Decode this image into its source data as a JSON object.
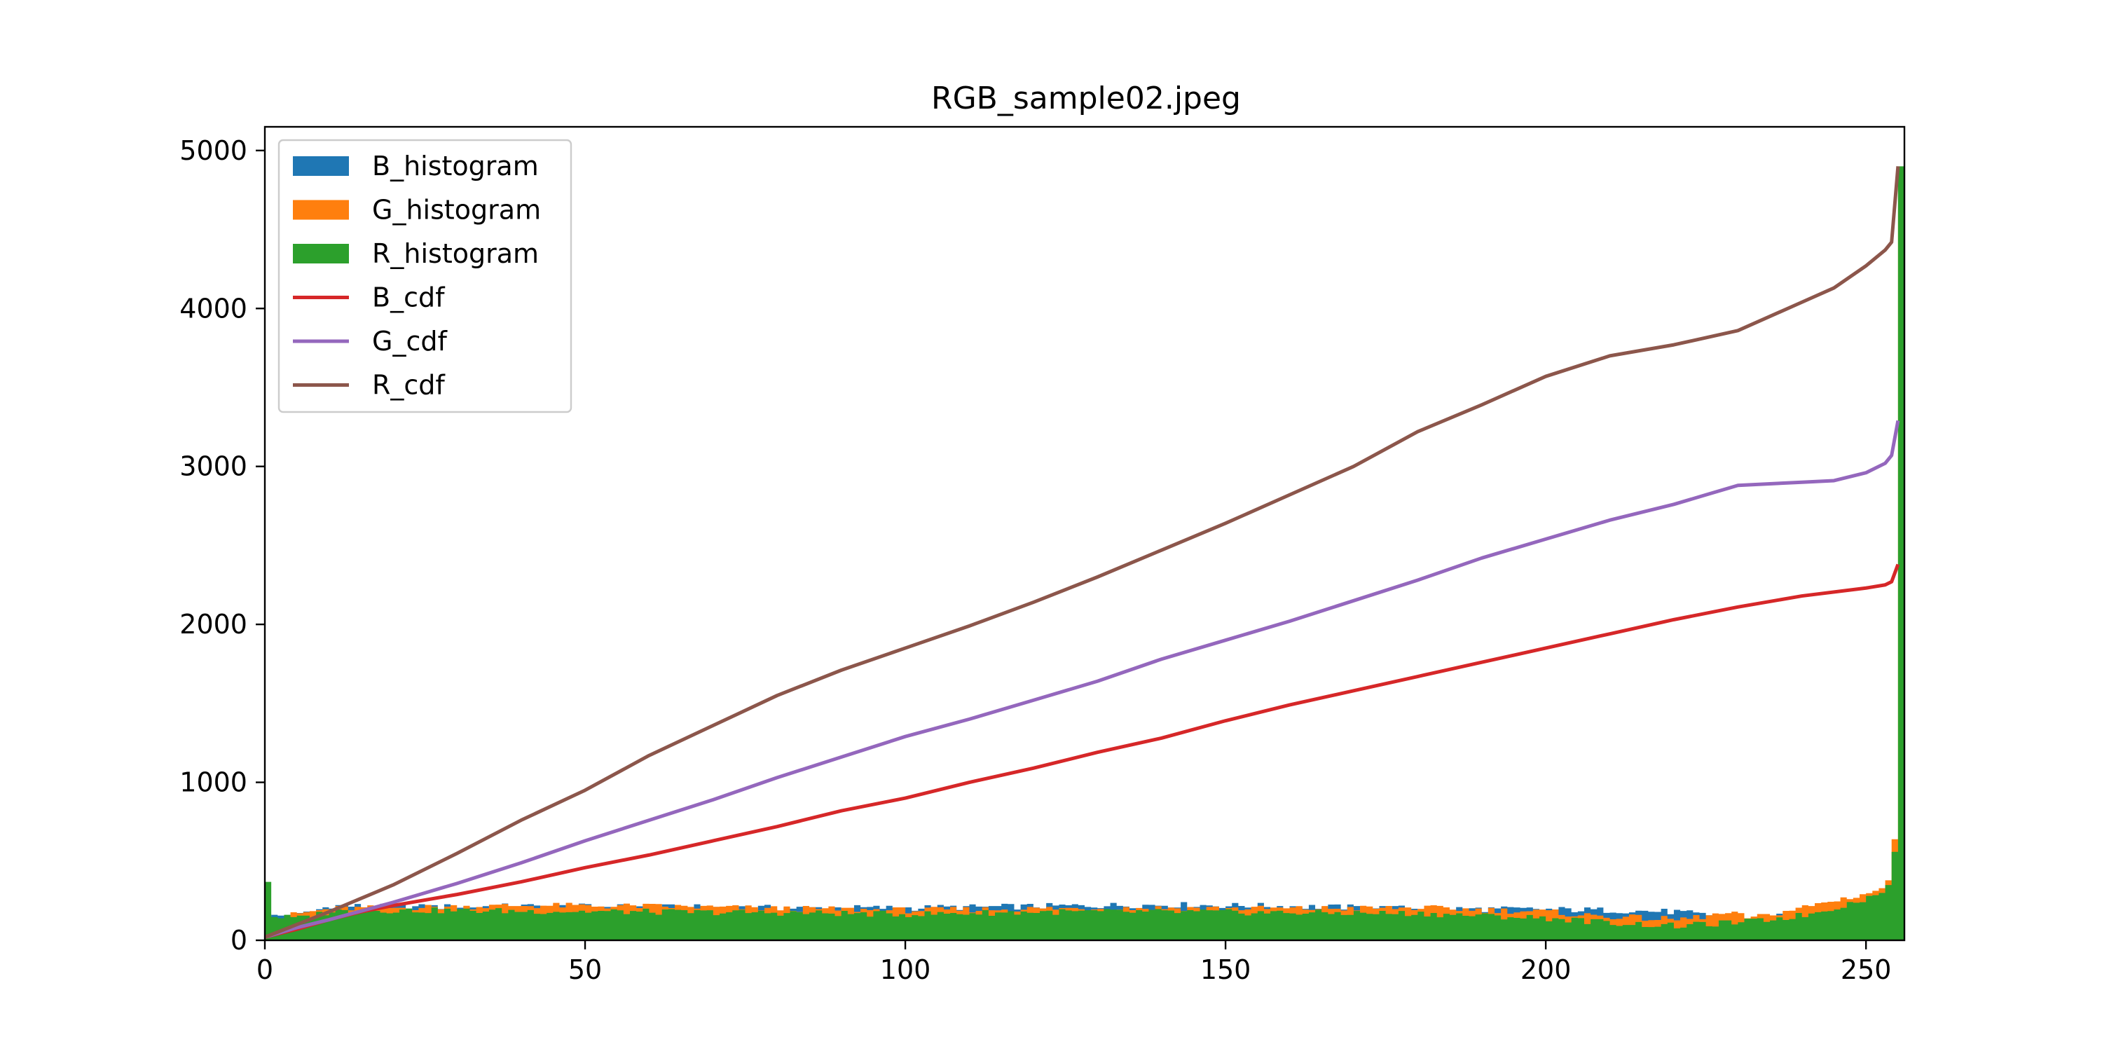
{
  "chart_data": {
    "type": "histogram+line",
    "title": "RGB_sample02.jpeg",
    "xlabel": "",
    "ylabel": "",
    "xlim": [
      0,
      256
    ],
    "ylim": [
      0,
      5150
    ],
    "xticks": [
      0,
      50,
      100,
      150,
      200,
      250
    ],
    "yticks": [
      0,
      1000,
      2000,
      3000,
      4000,
      5000
    ],
    "grid": false,
    "legend_position": "top-left",
    "bins": "0..255 (256 bins, width 1)",
    "series": [
      {
        "name": "B_histogram",
        "kind": "histogram",
        "color": "#1f77b4",
        "profile": [
          [
            0,
            150
          ],
          [
            5,
            160
          ],
          [
            10,
            220
          ],
          [
            20,
            210
          ],
          [
            40,
            215
          ],
          [
            60,
            210
          ],
          [
            80,
            205
          ],
          [
            100,
            205
          ],
          [
            120,
            215
          ],
          [
            140,
            225
          ],
          [
            160,
            215
          ],
          [
            180,
            200
          ],
          [
            200,
            195
          ],
          [
            210,
            190
          ],
          [
            220,
            180
          ],
          [
            230,
            130
          ],
          [
            235,
            150
          ],
          [
            245,
            230
          ],
          [
            250,
            280
          ],
          [
            252,
            300
          ],
          [
            253,
            330
          ],
          [
            254,
            380
          ],
          [
            255,
            520
          ]
        ]
      },
      {
        "name": "G_histogram",
        "kind": "histogram",
        "color": "#ff7f0e",
        "profile": [
          [
            0,
            120
          ],
          [
            5,
            170
          ],
          [
            10,
            200
          ],
          [
            20,
            205
          ],
          [
            40,
            220
          ],
          [
            60,
            215
          ],
          [
            80,
            200
          ],
          [
            100,
            190
          ],
          [
            120,
            200
          ],
          [
            140,
            205
          ],
          [
            160,
            200
          ],
          [
            180,
            205
          ],
          [
            200,
            180
          ],
          [
            205,
            160
          ],
          [
            210,
            150
          ],
          [
            220,
            130
          ],
          [
            228,
            170
          ],
          [
            232,
            140
          ],
          [
            240,
            210
          ],
          [
            250,
            300
          ],
          [
            252,
            330
          ],
          [
            253,
            380
          ],
          [
            254,
            640
          ],
          [
            255,
            4850
          ]
        ]
      },
      {
        "name": "R_histogram",
        "kind": "histogram",
        "color": "#2ca02c",
        "profile": [
          [
            0,
            370
          ],
          [
            1,
            150
          ],
          [
            5,
            140
          ],
          [
            10,
            185
          ],
          [
            20,
            190
          ],
          [
            40,
            185
          ],
          [
            60,
            180
          ],
          [
            80,
            175
          ],
          [
            100,
            165
          ],
          [
            120,
            180
          ],
          [
            140,
            180
          ],
          [
            160,
            175
          ],
          [
            180,
            170
          ],
          [
            200,
            140
          ],
          [
            210,
            110
          ],
          [
            220,
            90
          ],
          [
            228,
            110
          ],
          [
            232,
            120
          ],
          [
            240,
            160
          ],
          [
            245,
            210
          ],
          [
            250,
            270
          ],
          [
            252,
            300
          ],
          [
            253,
            350
          ],
          [
            254,
            560
          ],
          [
            255,
            4900
          ]
        ]
      },
      {
        "name": "B_cdf",
        "kind": "line",
        "color": "#d62728",
        "points": [
          [
            0,
            20
          ],
          [
            5,
            70
          ],
          [
            10,
            130
          ],
          [
            15,
            180
          ],
          [
            20,
            220
          ],
          [
            30,
            290
          ],
          [
            40,
            370
          ],
          [
            50,
            460
          ],
          [
            60,
            540
          ],
          [
            70,
            630
          ],
          [
            80,
            720
          ],
          [
            90,
            820
          ],
          [
            100,
            900
          ],
          [
            110,
            1000
          ],
          [
            120,
            1090
          ],
          [
            130,
            1190
          ],
          [
            140,
            1280
          ],
          [
            150,
            1390
          ],
          [
            160,
            1490
          ],
          [
            170,
            1580
          ],
          [
            180,
            1670
          ],
          [
            190,
            1760
          ],
          [
            200,
            1850
          ],
          [
            210,
            1940
          ],
          [
            220,
            2030
          ],
          [
            230,
            2110
          ],
          [
            240,
            2180
          ],
          [
            250,
            2230
          ],
          [
            253,
            2250
          ],
          [
            254,
            2270
          ],
          [
            255,
            2380
          ]
        ]
      },
      {
        "name": "G_cdf",
        "kind": "line",
        "color": "#9467bd",
        "points": [
          [
            0,
            20
          ],
          [
            5,
            80
          ],
          [
            10,
            130
          ],
          [
            20,
            240
          ],
          [
            30,
            360
          ],
          [
            40,
            490
          ],
          [
            50,
            630
          ],
          [
            60,
            760
          ],
          [
            70,
            890
          ],
          [
            80,
            1030
          ],
          [
            90,
            1160
          ],
          [
            100,
            1290
          ],
          [
            110,
            1400
          ],
          [
            120,
            1520
          ],
          [
            130,
            1640
          ],
          [
            140,
            1780
          ],
          [
            150,
            1900
          ],
          [
            160,
            2020
          ],
          [
            170,
            2150
          ],
          [
            180,
            2280
          ],
          [
            190,
            2420
          ],
          [
            200,
            2540
          ],
          [
            210,
            2660
          ],
          [
            220,
            2760
          ],
          [
            225,
            2820
          ],
          [
            230,
            2880
          ],
          [
            240,
            2900
          ],
          [
            245,
            2910
          ],
          [
            250,
            2960
          ],
          [
            253,
            3020
          ],
          [
            254,
            3070
          ],
          [
            255,
            3290
          ]
        ]
      },
      {
        "name": "R_cdf",
        "kind": "line",
        "color": "#8c564b",
        "points": [
          [
            0,
            20
          ],
          [
            5,
            100
          ],
          [
            10,
            180
          ],
          [
            20,
            350
          ],
          [
            30,
            550
          ],
          [
            40,
            760
          ],
          [
            50,
            950
          ],
          [
            60,
            1170
          ],
          [
            70,
            1360
          ],
          [
            80,
            1550
          ],
          [
            90,
            1710
          ],
          [
            100,
            1850
          ],
          [
            110,
            1990
          ],
          [
            120,
            2140
          ],
          [
            130,
            2300
          ],
          [
            140,
            2470
          ],
          [
            150,
            2640
          ],
          [
            160,
            2820
          ],
          [
            170,
            3000
          ],
          [
            180,
            3220
          ],
          [
            190,
            3390
          ],
          [
            200,
            3570
          ],
          [
            210,
            3700
          ],
          [
            220,
            3770
          ],
          [
            230,
            3860
          ],
          [
            240,
            4040
          ],
          [
            245,
            4130
          ],
          [
            250,
            4270
          ],
          [
            253,
            4370
          ],
          [
            254,
            4420
          ],
          [
            255,
            4900
          ]
        ]
      }
    ]
  }
}
